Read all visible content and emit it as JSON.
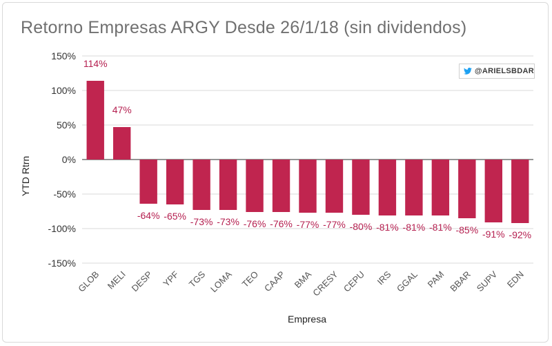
{
  "title": "Retorno Empresas ARGY Desde 26/1/18 (sin dividendos)",
  "badge": {
    "icon": "twitter-bird-icon",
    "text": "@ARIELSBDAR",
    "icon_color": "#1da1f2"
  },
  "colors": {
    "bar": "#c0254f",
    "label": "#b52050",
    "grid": "#d8d8d8"
  },
  "chart_data": {
    "type": "bar",
    "title": "Retorno Empresas ARGY Desde 26/1/18 (sin dividendos)",
    "xlabel": "Empresa",
    "ylabel": "YTD Rtrn",
    "ylim": [
      -150,
      150
    ],
    "yticks": [
      150,
      100,
      50,
      0,
      -50,
      -100,
      -150
    ],
    "ytick_labels": [
      "150%",
      "100%",
      "50%",
      "0%",
      "-50%",
      "-100%",
      "-150%"
    ],
    "grid": true,
    "categories": [
      "GLOB",
      "MELI",
      "DESP",
      "YPF",
      "TGS",
      "LOMA",
      "TEO",
      "CAAP",
      "BMA",
      "CRESY",
      "CEPU",
      "IRS",
      "GGAL",
      "PAM",
      "BBAR",
      "SUPV",
      "EDN"
    ],
    "values": [
      114,
      47,
      -64,
      -65,
      -73,
      -73,
      -76,
      -76,
      -77,
      -77,
      -80,
      -81,
      -81,
      -81,
      -85,
      -91,
      -92
    ],
    "data_labels": [
      "114%",
      "47%",
      "-64%",
      "-65%",
      "-73%",
      "-73%",
      "-76%",
      "-76%",
      "-77%",
      "-77%",
      "-80%",
      "-81%",
      "-81%",
      "-81%",
      "-85%",
      "-91%",
      "-92%"
    ]
  }
}
